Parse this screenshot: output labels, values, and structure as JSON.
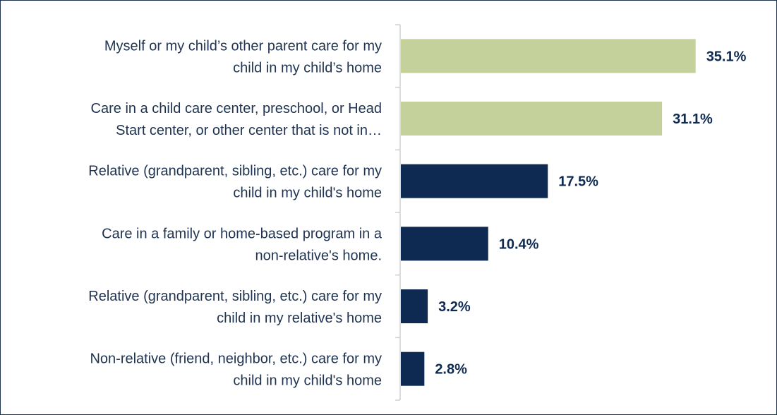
{
  "chart_data": {
    "type": "bar",
    "orientation": "horizontal",
    "categories": [
      [
        "Myself or my child’s other parent care for my",
        "child in my child’s home"
      ],
      [
        "Care in a child care center, preschool, or Head",
        "Start center, or other center that is not in…"
      ],
      [
        "Relative (grandparent, sibling, etc.) care for my",
        "child in my child's home"
      ],
      [
        "Care in a family or home-based program in a",
        "non-relative's home."
      ],
      [
        "Relative (grandparent, sibling, etc.) care for my",
        "child in my relative's home"
      ],
      [
        "Non-relative (friend, neighbor, etc.) care for my",
        "child in my child's home"
      ]
    ],
    "values": [
      35.1,
      31.1,
      17.5,
      10.4,
      3.2,
      2.8
    ],
    "value_labels": [
      "35.1%",
      "31.1%",
      "17.5%",
      "10.4%",
      "3.2%",
      "2.8%"
    ],
    "bar_colors": [
      "#c4d19a",
      "#c4d19a",
      "#0e2a52",
      "#0e2a52",
      "#0e2a52",
      "#0e2a52"
    ],
    "xlim": [
      0,
      40
    ],
    "grid": false,
    "legend": "none"
  }
}
